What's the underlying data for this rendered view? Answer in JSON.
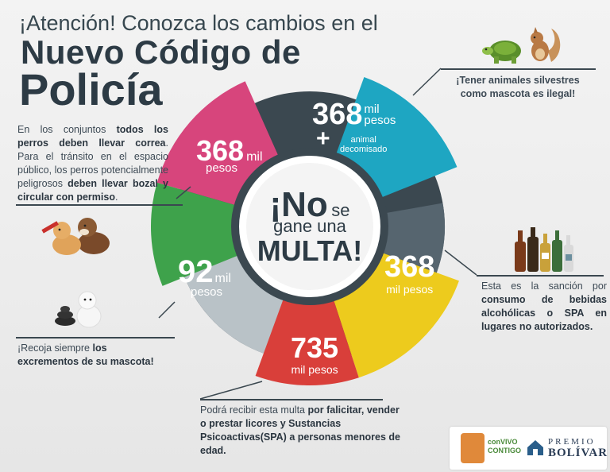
{
  "header": {
    "intro": "¡Atención! Conozca los cambios en el",
    "title_line1": "Nuevo Código de",
    "title_line2": "Policía"
  },
  "center": {
    "line1_big": "¡No",
    "line1_small": "se",
    "line2": "gane una",
    "line3": "MULTA!"
  },
  "segments": {
    "pink": {
      "amount": "368",
      "unit": "mil",
      "label": "pesos",
      "color": "#d7457c"
    },
    "cyan": {
      "amount": "368",
      "unit": "mil",
      "label": "pesos",
      "plus": "+",
      "extra1": "animal",
      "extra2": "decomisado",
      "color": "#1ea6c2"
    },
    "yellow": {
      "amount": "368",
      "unit": "mil pesos",
      "color": "#edcb1d"
    },
    "red": {
      "amount": "735",
      "unit": "mil pesos",
      "color": "#d93f3a"
    },
    "green": {
      "amount": "92",
      "unit": "mil",
      "label": "pesos",
      "color": "#3ea24b"
    }
  },
  "notes": {
    "dogs": {
      "p1": "En los conjuntos ",
      "b1": "todos los perros deben llevar correa",
      "p2": ". Para el tránsito en el espacio público, los perros potencialmente peligrosos ",
      "b2": "deben llevar bozal y circular con permiso",
      "p3": "."
    },
    "wild": "¡Tener animales silvestres como mascota es ilegal!",
    "alcohol": {
      "p1": "Esta es la sanción por ",
      "b1": "consumo de bebidas alcohólicas o SPA en lugares no autorizados."
    },
    "poop": {
      "p1": "¡Recoja siempre ",
      "b1": "los excrementos de su mascota!"
    },
    "minors": {
      "p1": "Podrá recibir esta multa ",
      "b1": "por falicitar, vender o prestar licores y Sustancias Psicoactivas(SPA) a personas menores de edad."
    }
  },
  "logos": {
    "convivo_line1": "conVIVO",
    "convivo_line2": "CONTIGO",
    "premio_line1": "PREMIO",
    "premio_line2": "BOLÍVAR"
  },
  "colors": {
    "dark": "#3b4850",
    "mid": "#56656f",
    "light_gray": "#b9c2c7",
    "text": "#2f3b45"
  },
  "icons": [
    "turtle-icon",
    "squirrel-icon",
    "dogs-icon",
    "dog-poop-icon",
    "liquor-bottles-icon"
  ]
}
